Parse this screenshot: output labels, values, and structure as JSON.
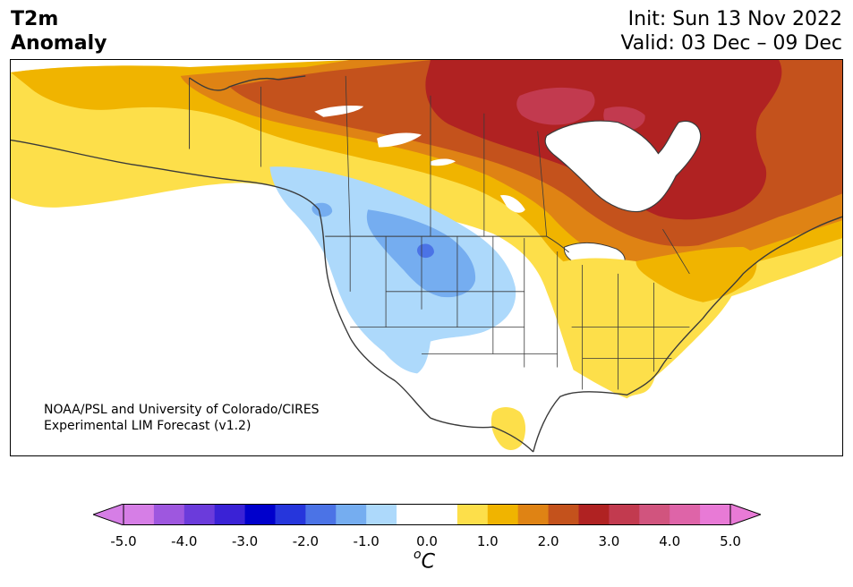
{
  "header": {
    "variable_line1": "T2m",
    "variable_line2": "Anomaly",
    "init": "Init: Sun 13 Nov 2022",
    "valid": "Valid: 03 Dec – 09 Dec"
  },
  "credit": {
    "line1": "NOAA/PSL and University of Colorado/CIRES",
    "line2": "Experimental LIM Forecast (v1.2)"
  },
  "colorbar": {
    "unit_sup": "o",
    "unit_main": "C",
    "ticks": [
      "-5.0",
      "-4.0",
      "-3.0",
      "-2.0",
      "-1.0",
      "0.0",
      "1.0",
      "2.0",
      "3.0",
      "4.0",
      "5.0"
    ],
    "colors_under": "#d67ee6",
    "colors": [
      "#d67ee6",
      "#9e57df",
      "#6b3bdb",
      "#3a22d6",
      "#0000cc",
      "#2636dc",
      "#4b73e6",
      "#75adf0",
      "#add9fb",
      "#ffffff",
      "#ffffff",
      "#fddf4a",
      "#f0b400",
      "#df8314",
      "#c4521c",
      "#b02222",
      "#c23a4f",
      "#d1547e",
      "#de64a8",
      "#e87ad6"
    ],
    "colors_over": "#e87ad6"
  },
  "map": {
    "region": "North America",
    "legend_ref": "T2m anomaly (°C)",
    "colors": {
      "warm_light": "#fddf4a",
      "warm_mid": "#f0b400",
      "warm_orange": "#df8314",
      "warm_burnt": "#c4521c",
      "warm_red": "#b02222",
      "warm_crimson": "#c23a4f",
      "cool_light": "#add9fb",
      "cool_mid": "#75adf0",
      "cool_deep": "#4b73e6",
      "neutral": "#ffffff",
      "borders": "#3a3a3a"
    }
  }
}
